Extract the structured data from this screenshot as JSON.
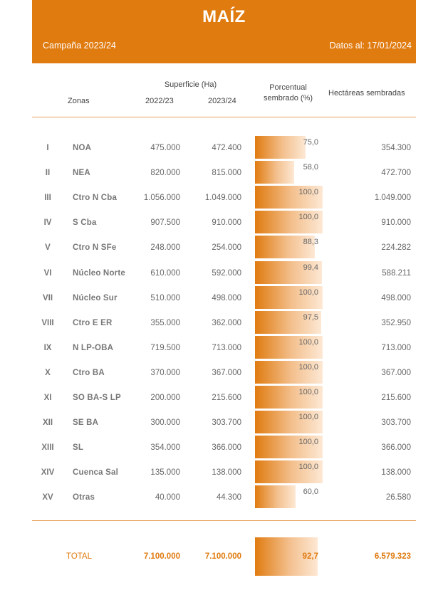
{
  "header": {
    "title": "MAÍZ",
    "campaign": "Campaña 2023/24",
    "date": "Datos al: 17/01/2024"
  },
  "columns": {
    "superficie": "Superficie (Ha)",
    "zonas": "Zonas",
    "y2022": "2022/23",
    "y2023": "2023/24",
    "pct_line1": "Porcentual",
    "pct_line2": "sembrado (%)",
    "hectareas": "Hectáreas sembradas"
  },
  "rows": [
    {
      "roman": "I",
      "zona": "NOA",
      "s2022": "475.000",
      "s2023": "472.400",
      "pct": "75,0",
      "pct_value": 75.0,
      "hs": "354.300"
    },
    {
      "roman": "II",
      "zona": "NEA",
      "s2022": "820.000",
      "s2023": "815.000",
      "pct": "58,0",
      "pct_value": 58.0,
      "hs": "472.700"
    },
    {
      "roman": "III",
      "zona": "Ctro N Cba",
      "s2022": "1.056.000",
      "s2023": "1.049.000",
      "pct": "100,0",
      "pct_value": 100.0,
      "hs": "1.049.000"
    },
    {
      "roman": "IV",
      "zona": "S Cba",
      "s2022": "907.500",
      "s2023": "910.000",
      "pct": "100,0",
      "pct_value": 100.0,
      "hs": "910.000"
    },
    {
      "roman": "V",
      "zona": "Ctro N SFe",
      "s2022": "248.000",
      "s2023": "254.000",
      "pct": "88,3",
      "pct_value": 88.3,
      "hs": "224.282"
    },
    {
      "roman": "VI",
      "zona": "Núcleo Norte",
      "s2022": "610.000",
      "s2023": "592.000",
      "pct": "99,4",
      "pct_value": 99.4,
      "hs": "588.211"
    },
    {
      "roman": "VII",
      "zona": "Núcleo Sur",
      "s2022": "510.000",
      "s2023": "498.000",
      "pct": "100,0",
      "pct_value": 100.0,
      "hs": "498.000"
    },
    {
      "roman": "VIII",
      "zona": "Ctro E ER",
      "s2022": "355.000",
      "s2023": "362.000",
      "pct": "97,5",
      "pct_value": 97.5,
      "hs": "352.950"
    },
    {
      "roman": "IX",
      "zona": "N LP-OBA",
      "s2022": "719.500",
      "s2023": "713.000",
      "pct": "100,0",
      "pct_value": 100.0,
      "hs": "713.000"
    },
    {
      "roman": "X",
      "zona": "Ctro BA",
      "s2022": "370.000",
      "s2023": "367.000",
      "pct": "100,0",
      "pct_value": 100.0,
      "hs": "367.000"
    },
    {
      "roman": "XI",
      "zona": "SO BA-S LP",
      "s2022": "200.000",
      "s2023": "215.600",
      "pct": "100,0",
      "pct_value": 100.0,
      "hs": "215.600"
    },
    {
      "roman": "XII",
      "zona": "SE BA",
      "s2022": "300.000",
      "s2023": "303.700",
      "pct": "100,0",
      "pct_value": 100.0,
      "hs": "303.700"
    },
    {
      "roman": "XIII",
      "zona": "SL",
      "s2022": "354.000",
      "s2023": "366.000",
      "pct": "100,0",
      "pct_value": 100.0,
      "hs": "366.000"
    },
    {
      "roman": "XIV",
      "zona": "Cuenca Sal",
      "s2022": "135.000",
      "s2023": "138.000",
      "pct": "100,0",
      "pct_value": 100.0,
      "hs": "138.000"
    },
    {
      "roman": "XV",
      "zona": "Otras",
      "s2022": "40.000",
      "s2023": "44.300",
      "pct": "60,0",
      "pct_value": 60.0,
      "hs": "26.580"
    }
  ],
  "total": {
    "label": "TOTAL",
    "s2022": "7.100.000",
    "s2023": "7.100.000",
    "pct": "92,7",
    "pct_value": 92.7,
    "hs": "6.579.323"
  }
}
